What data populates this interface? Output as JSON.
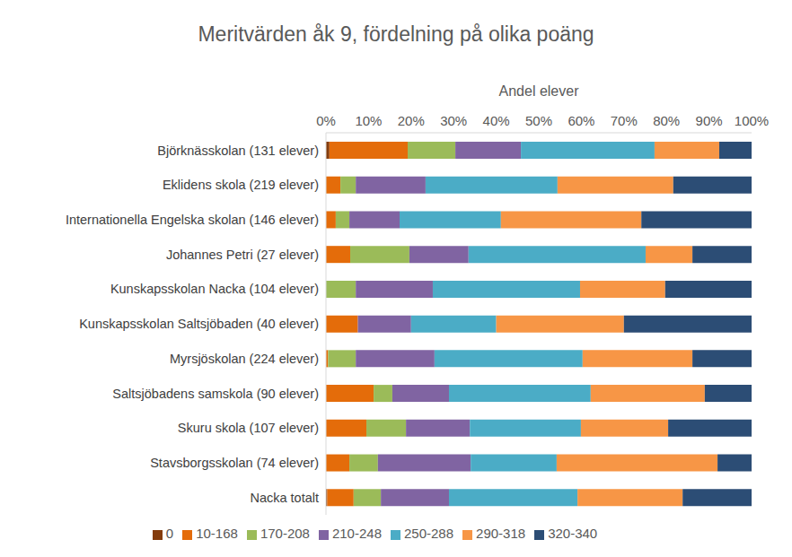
{
  "chart_data": {
    "type": "bar",
    "title": "Meritvärden åk 9, fördelning på olika poäng",
    "x_label": "Andel elever",
    "orientation": "horizontal",
    "stacked": true,
    "grid": false,
    "legend": "bottom",
    "categories": [
      "Björknässkolan (131 elever)",
      "Eklidens skola (219 elever)",
      "Internationella Engelska skolan (146 elever)",
      "Johannes Petri (27 elever)",
      "Kunskapsskolan Nacka (104 elever)",
      "Kunskapsskolan Saltsjöbaden (40 elever)",
      "Myrsjöskolan (224 elever)",
      "Saltsjöbadens samskola (90 elever)",
      "Skuru skola (107 elever)",
      "Stavsborgsskolan (74 elever)",
      "Nacka totalt"
    ],
    "xlim": [
      0,
      100
    ],
    "xticks": [
      {
        "value": 0,
        "label": "0%"
      },
      {
        "value": 10,
        "label": "10%"
      },
      {
        "value": 20,
        "label": "20%"
      },
      {
        "value": 30,
        "label": "30%"
      },
      {
        "value": 40,
        "label": "40%"
      },
      {
        "value": 50,
        "label": "50%"
      },
      {
        "value": 60,
        "label": "60%"
      },
      {
        "value": 70,
        "label": "70%"
      },
      {
        "value": 80,
        "label": "80%"
      },
      {
        "value": 90,
        "label": "90%"
      },
      {
        "value": 100,
        "label": "100%"
      }
    ],
    "series": [
      {
        "name": "0",
        "color": "#843c0c",
        "values": [
          0.8,
          0,
          0,
          0,
          0,
          0,
          0,
          0,
          0,
          0,
          0.3
        ]
      },
      {
        "name": "10-168",
        "color": "#e46c0a",
        "values": [
          18.4,
          3.4,
          2.3,
          5.7,
          0,
          7.5,
          0.5,
          11.2,
          9.5,
          5.5,
          6.2
        ]
      },
      {
        "name": "170-208",
        "color": "#9bbb59",
        "values": [
          11.2,
          3.6,
          3.2,
          13.9,
          7.0,
          0,
          6.5,
          4.4,
          9.3,
          6.7,
          6.4
        ]
      },
      {
        "name": "210-248",
        "color": "#8064a2",
        "values": [
          15.4,
          16.4,
          11.8,
          13.9,
          18.1,
          12.5,
          18.5,
          13.3,
          15.0,
          21.8,
          16.0
        ]
      },
      {
        "name": "250-288",
        "color": "#4bacc6",
        "values": [
          31.4,
          31.0,
          23.8,
          41.6,
          34.6,
          20.0,
          34.8,
          33.3,
          26.1,
          20.2,
          30.2
        ]
      },
      {
        "name": "290-318",
        "color": "#f79646",
        "values": [
          15.2,
          27.2,
          33.0,
          11.0,
          20.0,
          30.0,
          25.8,
          26.8,
          20.5,
          37.8,
          24.7
        ]
      },
      {
        "name": "320-340",
        "color": "#2c4d75",
        "values": [
          7.6,
          18.4,
          25.9,
          13.9,
          20.3,
          30.0,
          13.9,
          11.0,
          19.6,
          8.0,
          16.2
        ]
      }
    ]
  }
}
